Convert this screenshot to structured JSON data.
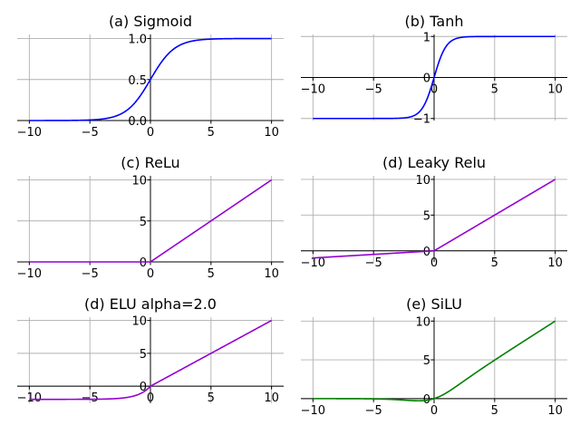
{
  "chart_data": [
    {
      "type": "line",
      "title": "(a) Sigmoid",
      "function": "sigmoid",
      "x_range": [
        -10,
        10
      ],
      "xticks": [
        -10,
        -5,
        0,
        5,
        10
      ],
      "yticks": [
        0.0,
        0.5,
        1.0
      ],
      "ytick_labels": [
        "0.0",
        "0.5",
        "1.0"
      ],
      "xlim": [
        -11,
        11
      ],
      "ylim": [
        0,
        1.05
      ],
      "grid": true,
      "color": "#0000ff",
      "x": [
        -10,
        -4,
        -2,
        -1,
        0,
        1,
        2,
        4,
        10
      ],
      "y": [
        5e-05,
        0.018,
        0.119,
        0.269,
        0.5,
        0.731,
        0.881,
        0.982,
        0.99995
      ]
    },
    {
      "type": "line",
      "title": "(b) Tanh",
      "function": "tanh",
      "x_range": [
        -10,
        10
      ],
      "xticks": [
        -10,
        -5,
        0,
        5,
        10
      ],
      "yticks": [
        -1,
        0,
        1
      ],
      "ytick_labels": [
        "-1",
        "0",
        "1"
      ],
      "xlim": [
        -11,
        11
      ],
      "ylim": [
        -1.05,
        1.05
      ],
      "grid": true,
      "color": "#0000ff",
      "x": [
        -10,
        -2,
        -1,
        0,
        1,
        2,
        10
      ],
      "y": [
        -1.0,
        -0.964,
        -0.762,
        0,
        0.762,
        0.964,
        1.0
      ]
    },
    {
      "type": "line",
      "title": "(c) ReLu",
      "function": "relu",
      "x_range": [
        -10,
        10
      ],
      "xticks": [
        -10,
        -5,
        0,
        5,
        10
      ],
      "yticks": [
        0,
        5,
        10
      ],
      "ytick_labels": [
        "0",
        "5",
        "10"
      ],
      "xlim": [
        -11,
        11
      ],
      "ylim": [
        0,
        10.5
      ],
      "grid": true,
      "color": "#9400d3",
      "x": [
        -10,
        0,
        10
      ],
      "y": [
        0,
        0,
        10
      ]
    },
    {
      "type": "line",
      "title": "(d) Leaky Relu",
      "function": "leaky_relu",
      "alpha": 0.1,
      "x_range": [
        -10,
        10
      ],
      "xticks": [
        -10,
        -5,
        0,
        5,
        10
      ],
      "yticks": [
        0,
        5,
        10
      ],
      "ytick_labels": [
        "0",
        "5",
        "10"
      ],
      "xlim": [
        -11,
        11
      ],
      "ylim": [
        -1.55,
        10.5
      ],
      "grid": true,
      "color": "#9400d3",
      "x": [
        -10,
        0,
        10
      ],
      "y": [
        -1,
        0,
        10
      ]
    },
    {
      "type": "line",
      "title": "(d) ELU alpha=2.0",
      "function": "elu",
      "alpha": 2.0,
      "x_range": [
        -10,
        10
      ],
      "xticks": [
        -10,
        -5,
        0,
        5,
        10
      ],
      "yticks": [
        0,
        5,
        10
      ],
      "ytick_labels": [
        "0",
        "5",
        "10"
      ],
      "xlim": [
        -11,
        11
      ],
      "ylim": [
        -2.6,
        10.5
      ],
      "grid": true,
      "color": "#9400d3",
      "x": [
        -10,
        -2,
        -1,
        0,
        10
      ],
      "y": [
        -2.0,
        -1.73,
        -1.26,
        0,
        10
      ]
    },
    {
      "type": "line",
      "title": "(e) SiLU",
      "function": "silu",
      "x_range": [
        -10,
        10
      ],
      "xticks": [
        -10,
        -5,
        0,
        5,
        10
      ],
      "yticks": [
        0,
        5,
        10
      ],
      "ytick_labels": [
        "0",
        "5",
        "10"
      ],
      "xlim": [
        -11,
        11
      ],
      "ylim": [
        -0.6,
        10.5
      ],
      "grid": true,
      "color": "#008000",
      "x": [
        -10,
        -5,
        -1.28,
        0,
        2,
        5,
        10
      ],
      "y": [
        -0.0005,
        -0.033,
        -0.278,
        0,
        1.76,
        4.97,
        10.0
      ]
    }
  ]
}
